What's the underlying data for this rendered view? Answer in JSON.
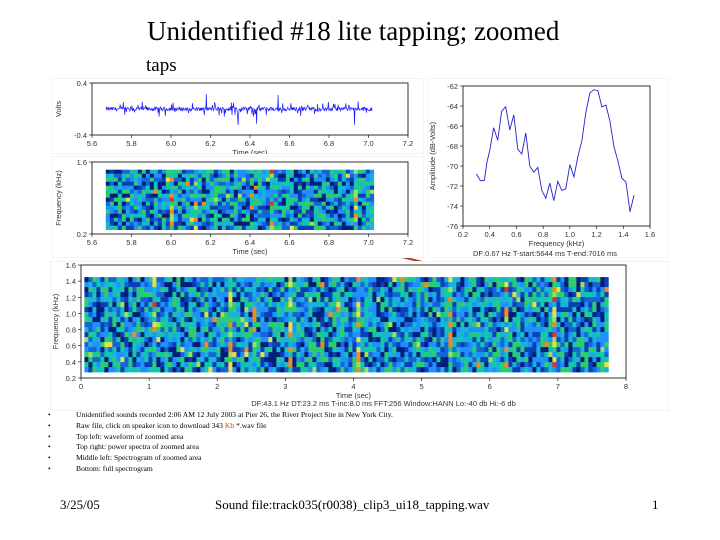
{
  "slide": {
    "title": "Unidentified #18 lite tapping; zoomed",
    "annotation": "taps",
    "footer_date": "3/25/05",
    "footer_center": "Sound file:track035(r0038)_clip3_ui18_tapping.wav",
    "footer_page": "1"
  },
  "bullets": [
    "Unidentified sounds recorded 2:06 AM 12 July 2003 at Pier 26, the River Project Site in New York City.",
    "Top left: waveform of zoomed area",
    "Top right: power spectra of zoomed area",
    "Middle left: Spectrogram of zoomed area",
    "Bottom: full spectrogram"
  ],
  "rawfile": {
    "before": "Raw file, click on speaker icon to download 343 ",
    "kb": "Kb",
    "after": " *.wav file"
  },
  "colors": {
    "waveform": "#1a1aff",
    "spectrum": "#2222cc",
    "arrow": "#b03a1a",
    "grid": "#000000",
    "panel": "#ffffff"
  },
  "chart_data": [
    {
      "type": "line",
      "ylabel": "Volts",
      "xlabel": "Time (sec)",
      "xlim": [
        5.6,
        7.2
      ],
      "ylim": [
        -0.4,
        0.4
      ],
      "xticks": [
        "5.6",
        "5.8",
        "6.0",
        "6.2",
        "6.4",
        "6.6",
        "6.8",
        "7.0",
        "7.2"
      ],
      "yticks": [
        "-0.4",
        "0.4"
      ],
      "data_range": [
        5.67,
        7.02
      ]
    },
    {
      "type": "heatmap",
      "ylabel": "Frequency (kHz)",
      "xlabel": "Time (sec)",
      "xlim": [
        5.6,
        7.2
      ],
      "ylim": [
        0.2,
        1.6
      ],
      "xticks": [
        "5.6",
        "5.8",
        "6.0",
        "6.2",
        "6.4",
        "6.6",
        "6.8",
        "7.0",
        "7.2"
      ],
      "yticks": [
        "1.6",
        "0.2"
      ],
      "data_range": [
        5.67,
        7.02
      ]
    },
    {
      "type": "line",
      "ylabel": "Amplitude (dB-Volts)",
      "xlabel": "Frequency (kHz)",
      "xlim": [
        0.2,
        1.6
      ],
      "ylim": [
        -76,
        -62
      ],
      "xticks": [
        "0.2",
        "0.4",
        "0.6",
        "0.8",
        "1.0",
        "1.2",
        "1.4",
        "1.6"
      ],
      "yticks": [
        "-62",
        "-64",
        "-66",
        "-68",
        "-70",
        "-72",
        "-74",
        "-76"
      ],
      "x": [
        0.3,
        0.33,
        0.36,
        0.38,
        0.4,
        0.43,
        0.46,
        0.49,
        0.52,
        0.55,
        0.58,
        0.61,
        0.64,
        0.67,
        0.7,
        0.73,
        0.76,
        0.79,
        0.82,
        0.85,
        0.88,
        0.91,
        0.94,
        0.97,
        1.0,
        1.03,
        1.06,
        1.09,
        1.12,
        1.15,
        1.18,
        1.21,
        1.24,
        1.27,
        1.3,
        1.33,
        1.36,
        1.39,
        1.42,
        1.45,
        1.48
      ],
      "y": [
        -70.5,
        -71.5,
        -72,
        -70,
        -69,
        -66,
        -67,
        -65,
        -64.5,
        -66,
        -65,
        -68,
        -69,
        -67,
        -70,
        -71,
        -70,
        -72.5,
        -73,
        -72,
        -74,
        -71,
        -72.5,
        -72,
        -70,
        -71,
        -69,
        -67,
        -65,
        -63,
        -62,
        -63,
        -64,
        -63.5,
        -66,
        -67.5,
        -69,
        -71,
        -72,
        -74,
        -73
      ],
      "footer": {
        "df": "DF:0.67 Hz",
        "tstart": "T-start:5644 ms",
        "tend": "T-end:7016 ms"
      }
    },
    {
      "type": "heatmap",
      "ylabel": "Frequency (kHz)",
      "xlabel": "Time (sec)",
      "xlim": [
        0,
        8
      ],
      "ylim": [
        0.2,
        1.6
      ],
      "xticks": [
        "0",
        "1",
        "2",
        "3",
        "4",
        "5",
        "6",
        "7",
        "8"
      ],
      "yticks": [
        "1.6",
        "1.4",
        "1.2",
        "1.0",
        "0.8",
        "0.6",
        "0.4",
        "0.2"
      ],
      "data_range": [
        0.05,
        7.7
      ],
      "footer": {
        "df": "DF:43.1 Hz",
        "dt": "DT:23.2 ms",
        "tinc": "T-inc:8.0 ms",
        "fft": "FFT:256",
        "window": "Window:HANN",
        "lo": "Lo:-40 db",
        "hi": "Hi:-6 db"
      }
    }
  ]
}
